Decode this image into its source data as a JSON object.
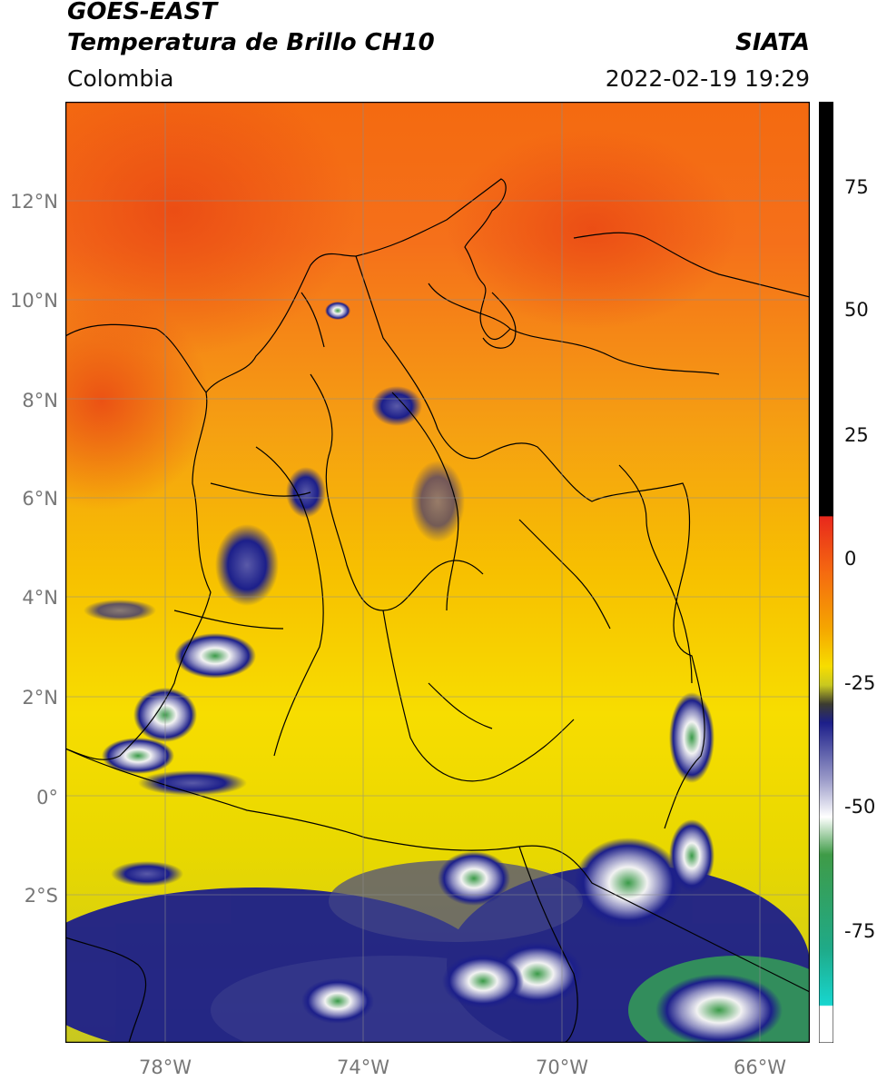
{
  "header": {
    "satellite": "GOES-EAST",
    "product": "Temperatura de Brillo CH10",
    "region": "Colombia",
    "agency": "SIATA",
    "datetime": "2022-02-19 19:29"
  },
  "map": {
    "lon_range": [
      -80,
      -65
    ],
    "lat_range": [
      -5,
      14
    ],
    "lon_ticks": [
      "78°W",
      "74°W",
      "70°W",
      "66°W"
    ],
    "lat_ticks": [
      "12°N",
      "10°N",
      "8°N",
      "6°N",
      "4°N",
      "2°N",
      "0°",
      "2°S"
    ],
    "grid": true
  },
  "colorbar": {
    "ticks": [
      "75",
      "50",
      "25",
      "0",
      "-25",
      "-50",
      "-75"
    ],
    "range": [
      -95,
      90
    ],
    "colors": {
      "hot": "#000000",
      "warm": "#e8281c",
      "mid": "#f5d800",
      "cold": "#1c1f8a",
      "frozen": "#ffffff",
      "deep": "#3f9b47",
      "extreme": "#17d6cf"
    }
  }
}
